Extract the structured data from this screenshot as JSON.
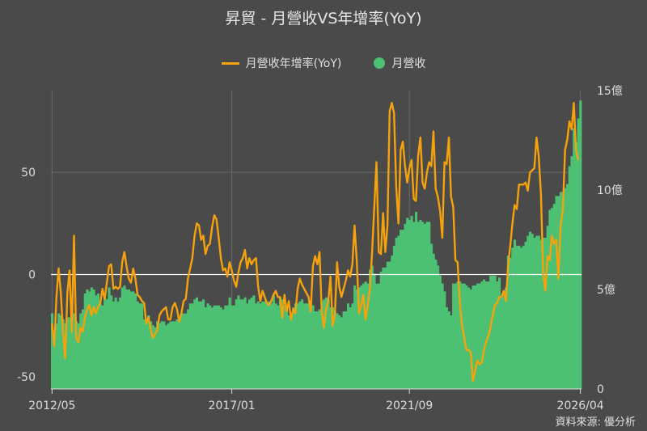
{
  "title": "昇貿 - 月營收VS年增率(YoY)",
  "source": "資料來源: 優分析",
  "colors": {
    "background": "#4a4a4a",
    "bar": "#4cc173",
    "line": "#f5a20c",
    "grid": "#6a6a6a",
    "zero_line": "#ffffff"
  },
  "chart_data": {
    "type": "bar+line",
    "x_ticks": [
      "2012/05",
      "2017/01",
      "2021/09",
      "2026/04"
    ],
    "left_axis": {
      "ticks": [
        "-50",
        "0",
        "50"
      ],
      "range": [
        -56,
        90
      ]
    },
    "right_axis": {
      "ticks": [
        "0",
        "5億",
        "10億",
        "15億"
      ],
      "range": [
        0,
        15
      ]
    },
    "grid": true,
    "legend_position": "top-center",
    "series": [
      {
        "name": "月營收年增率(YoY)",
        "kind": "line",
        "values": [
          -24,
          -35,
          -11,
          3,
          -9,
          -28,
          -41,
          -9,
          2,
          -28,
          19,
          -31,
          -33,
          -26,
          -28,
          -21,
          -17,
          -15,
          -20,
          -16,
          -19,
          -16,
          -14,
          -7,
          -12,
          -4,
          4,
          5,
          -7,
          -6,
          -7,
          -6,
          6,
          11,
          4,
          -2,
          -4,
          3,
          -2,
          -10,
          -11,
          -13,
          -14,
          -24,
          -21,
          -27,
          -31,
          -29,
          -27,
          -20,
          -18,
          -17,
          -16,
          -22,
          -22,
          -16,
          -14,
          -17,
          -23,
          -19,
          -13,
          -12,
          -2,
          3,
          8,
          19,
          25,
          24,
          17,
          19,
          10,
          14,
          15,
          23,
          29,
          27,
          18,
          8,
          2,
          3,
          -1,
          6,
          2,
          -3,
          -6,
          1,
          6,
          8,
          12,
          3,
          8,
          5,
          7,
          8,
          -6,
          -13,
          -8,
          -11,
          -14,
          -15,
          -13,
          -10,
          -8,
          -11,
          -11,
          -21,
          -10,
          -18,
          -13,
          -22,
          -17,
          -19,
          -7,
          -2,
          -5,
          -7,
          -9,
          -11,
          -18,
          4,
          9,
          5,
          11,
          -18,
          -26,
          -17,
          -13,
          -1,
          -25,
          -20,
          6,
          -6,
          -11,
          -7,
          -3,
          2,
          -1,
          5,
          24,
          7,
          -19,
          -15,
          -10,
          -22,
          -15,
          -7,
          11,
          33,
          55,
          11,
          10,
          30,
          11,
          24,
          80,
          84,
          79,
          43,
          25,
          61,
          65,
          53,
          45,
          52,
          56,
          37,
          36,
          58,
          67,
          45,
          42,
          50,
          55,
          53,
          70,
          42,
          38,
          31,
          18,
          55,
          54,
          67,
          38,
          33,
          7,
          6,
          -14,
          -25,
          -31,
          -37,
          -37,
          -38,
          -52,
          -47,
          -42,
          -44,
          -43,
          -37,
          -33,
          -30,
          -26,
          -20,
          -15,
          -14,
          -11,
          -11,
          -8,
          -13,
          4,
          14,
          25,
          34,
          32,
          44,
          44,
          44,
          45,
          41,
          50,
          51,
          52,
          67,
          58,
          39,
          0,
          -8,
          9,
          7,
          19,
          15,
          17,
          -2,
          24,
          32,
          61,
          66,
          75,
          71,
          84,
          61,
          56
        ],
        "last_value": 61
      },
      {
        "name": "月營收",
        "kind": "bar",
        "values": [
          3.8,
          2.9,
          3.3,
          3.8,
          3.7,
          3.5,
          3.3,
          3.6,
          3.6,
          3.1,
          3.8,
          3.4,
          3.3,
          3.8,
          4.0,
          4.8,
          5.0,
          4.9,
          5.1,
          5.0,
          4.7,
          4.8,
          4.3,
          4.2,
          4.6,
          4.5,
          5.1,
          4.7,
          4.4,
          4.6,
          4.4,
          4.6,
          5.1,
          5.2,
          5.0,
          5.0,
          4.9,
          4.9,
          4.8,
          4.4,
          4.3,
          4.3,
          3.5,
          3.4,
          3.7,
          3.4,
          3.2,
          3.1,
          3.4,
          3.3,
          3.4,
          3.4,
          3.2,
          3.3,
          3.4,
          3.4,
          3.4,
          3.5,
          3.4,
          3.8,
          3.8,
          3.8,
          4.0,
          4.3,
          4.3,
          4.5,
          4.6,
          4.4,
          4.4,
          4.5,
          4.1,
          4.3,
          4.2,
          4.1,
          4.2,
          4.2,
          4.2,
          4.1,
          4.0,
          4.2,
          4.2,
          4.6,
          4.2,
          4.2,
          4.5,
          4.7,
          4.5,
          4.5,
          4.6,
          4.3,
          4.5,
          4.6,
          4.7,
          4.3,
          4.4,
          4.3,
          4.4,
          4.4,
          4.3,
          4.4,
          4.3,
          4.7,
          4.3,
          4.2,
          4.6,
          4.5,
          4.2,
          4.1,
          3.7,
          3.6,
          4.1,
          4.3,
          4.3,
          4.4,
          4.5,
          4.3,
          4.3,
          4.3,
          4.4,
          4.2,
          3.9,
          3.9,
          4.0,
          4.4,
          4.5,
          4.6,
          4.5,
          4.1,
          4.1,
          3.9,
          3.8,
          3.7,
          3.6,
          3.9,
          3.9,
          4.3,
          4.1,
          4.3,
          5.2,
          5.0,
          5.1,
          5.2,
          5.3,
          5.4,
          5.3,
          6.0,
          6.2,
          5.8,
          5.3,
          5.3,
          5.9,
          6.1,
          6.1,
          6.4,
          6.4,
          6.7,
          7.2,
          7.6,
          7.7,
          8.0,
          8.0,
          8.3,
          8.6,
          8.5,
          8.7,
          8.4,
          8.9,
          8.4,
          8.5,
          8.4,
          8.3,
          8.4,
          8.4,
          7.3,
          6.8,
          6.5,
          6.2,
          5.7,
          5.3,
          4.9,
          4.1,
          3.9,
          3.7,
          5.3,
          5.3,
          5.4,
          5.4,
          5.3,
          5.3,
          5.2,
          5.1,
          5.0,
          5.2,
          5.2,
          5.3,
          5.3,
          5.4,
          5.5,
          5.4,
          5.4,
          5.7,
          5.7,
          5.7,
          5.4,
          5.6,
          4.6,
          4.8,
          5.1,
          6.7,
          6.6,
          7.1,
          7.5,
          7.2,
          7.2,
          7.1,
          7.2,
          7.4,
          7.7,
          7.9,
          7.8,
          7.6,
          7.7,
          7.7,
          7.5,
          7.6,
          7.6,
          8.2,
          9.0,
          9.1,
          9.3,
          9.7,
          9.7,
          9.9,
          9.9,
          10.1,
          10.3,
          11.2,
          11.7,
          13.1,
          12.4,
          13.6,
          14.5
        ]
      }
    ]
  }
}
